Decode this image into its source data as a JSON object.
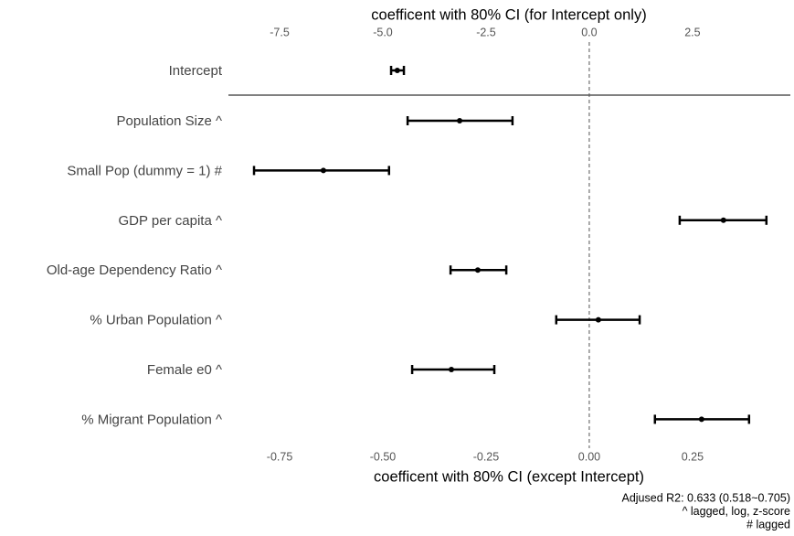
{
  "chart_data": {
    "type": "coefplot",
    "color": "#000000",
    "xlabel": "coefficent with 80% CI (except Intercept)",
    "x2label": "coefficent with 80% CI (for Intercept only)",
    "categories": [
      "Population Size ^",
      "Small Pop (dummy = 1) #",
      "GDP per capita ^",
      "Old-age Dependency Ratio ^",
      "% Urban Population ^",
      "Female e0 ^",
      "% Migrant Population ^"
    ],
    "values": [
      -0.314,
      -0.644,
      0.325,
      -0.27,
      0.022,
      -0.334,
      0.272
    ],
    "lower": [
      -0.44,
      -0.812,
      0.219,
      -0.336,
      -0.08,
      -0.429,
      0.159
    ],
    "upper": [
      -0.186,
      -0.485,
      0.429,
      -0.201,
      0.122,
      -0.23,
      0.387
    ],
    "xlim": [
      -0.874,
      0.487
    ],
    "xticks": [
      -0.75,
      {
        "value": -0.5,
        "label": "-0.50"
      },
      -0.25,
      {
        "value": 0,
        "label": "0.00"
      },
      0.25
    ],
    "intercept": {
      "category": "Intercept",
      "value": -4.65,
      "lower": -4.8,
      "upper": -4.49
    },
    "x2lim": [
      -8.74,
      4.87
    ],
    "x2ticks": [
      -7.5,
      {
        "value": -5,
        "label": "-5.0"
      },
      -2.5,
      {
        "value": 0,
        "label": "0.0"
      },
      2.5
    ],
    "notes": [
      "Adjused R2: 0.633 (0.518~0.705)",
      "^ lagged, log, z-score",
      "# lagged"
    ]
  }
}
